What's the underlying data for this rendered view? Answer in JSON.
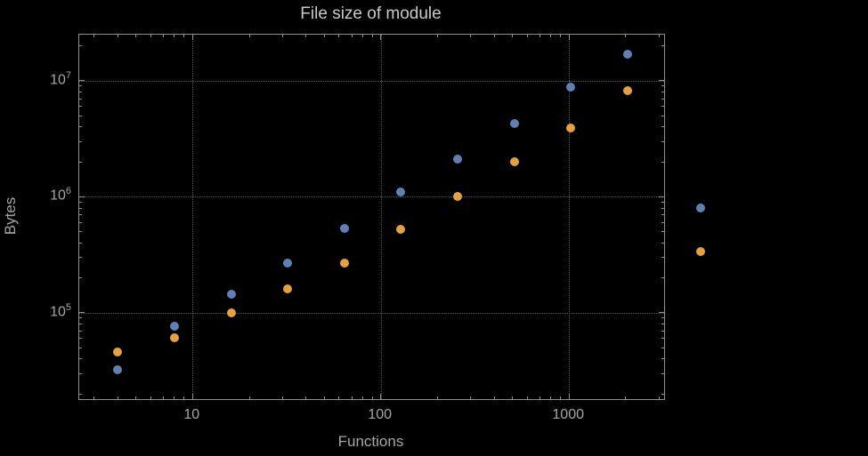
{
  "chart_data": {
    "type": "scatter",
    "title": "File size of module",
    "xlabel": "Functions",
    "ylabel": "Bytes",
    "x_scale": "log",
    "y_scale": "log",
    "xlim": [
      2.5,
      3200
    ],
    "ylim": [
      18000,
      25000000
    ],
    "grid": true,
    "legend": "none",
    "colors": {
      "series1": "#5e81b5",
      "series2": "#e5a23c",
      "frame": "#8f8f8f",
      "gridline": "#5e5e5e",
      "text": "#a6a6a6",
      "title_text": "#c9c9c9",
      "background": "#000000"
    },
    "x_ticks": [
      {
        "value": 10,
        "label": "10"
      },
      {
        "value": 100,
        "label": "100"
      },
      {
        "value": 1000,
        "label": "1000"
      }
    ],
    "y_ticks": [
      {
        "value": 100000,
        "base": "10",
        "exp": "5"
      },
      {
        "value": 1000000,
        "base": "10",
        "exp": "6"
      },
      {
        "value": 10000000,
        "base": "10",
        "exp": "7"
      }
    ],
    "series": [
      {
        "name": "blue-series",
        "color": "#5e81b5",
        "points": [
          [
            4,
            32000
          ],
          [
            8,
            76000
          ],
          [
            16,
            145000
          ],
          [
            32,
            270000
          ],
          [
            64,
            530000
          ],
          [
            128,
            1100000
          ],
          [
            256,
            2100000
          ],
          [
            512,
            4300000
          ],
          [
            1024,
            8800000
          ],
          [
            2048,
            17000000
          ],
          [
            5000,
            800000
          ]
        ]
      },
      {
        "name": "orange-series",
        "color": "#e5a23c",
        "points": [
          [
            4,
            46000
          ],
          [
            8,
            61000
          ],
          [
            16,
            100000
          ],
          [
            32,
            160000
          ],
          [
            64,
            270000
          ],
          [
            128,
            520000
          ],
          [
            256,
            1000000
          ],
          [
            512,
            2000000
          ],
          [
            1024,
            3900000
          ],
          [
            2048,
            8300000
          ],
          [
            5000,
            340000
          ]
        ]
      }
    ]
  }
}
